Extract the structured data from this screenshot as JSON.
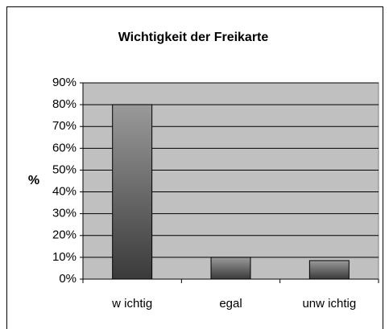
{
  "chart_data": {
    "type": "bar",
    "title": "Wichtigkeit der Freikarte",
    "y_label": "%",
    "categories": [
      "w ichtig",
      "egal",
      "unw ichtig"
    ],
    "values": [
      80,
      10,
      8.5
    ],
    "color": "#555555",
    "ylim": [
      0,
      90
    ],
    "yticks": [
      {
        "value": 0,
        "label": "0%"
      },
      {
        "value": 10,
        "label": "10%"
      },
      {
        "value": 20,
        "label": "20%"
      },
      {
        "value": 30,
        "label": "30%"
      },
      {
        "value": 40,
        "label": "40%"
      },
      {
        "value": 50,
        "label": "50%"
      },
      {
        "value": 60,
        "label": "60%"
      },
      {
        "value": 70,
        "label": "70%"
      },
      {
        "value": 80,
        "label": "80%"
      },
      {
        "value": 90,
        "label": "90%"
      }
    ],
    "grid": true
  }
}
